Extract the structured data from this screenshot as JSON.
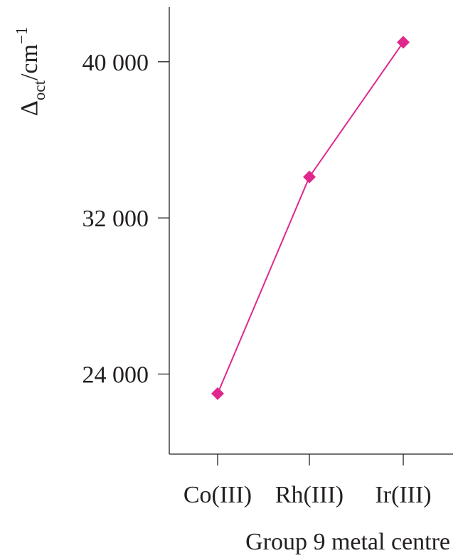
{
  "chart_data": {
    "type": "line",
    "categories": [
      "Co(III)",
      "Rh(III)",
      "Ir(III)"
    ],
    "series": [
      {
        "values": [
          23000,
          34100,
          41000
        ]
      }
    ],
    "y_ticks": [
      "24 000",
      "32 000",
      "40 000"
    ],
    "y_tick_values": [
      24000,
      32000,
      40000
    ],
    "ylim": [
      19900,
      42800
    ],
    "ylabel": {
      "symbol": "Δ",
      "subscript": "oct",
      "unit": "/cm",
      "superscript": "−1"
    },
    "xlabel": "Group 9 metal centre",
    "marker": "diamond",
    "grid": false,
    "color": "#e0288c"
  }
}
